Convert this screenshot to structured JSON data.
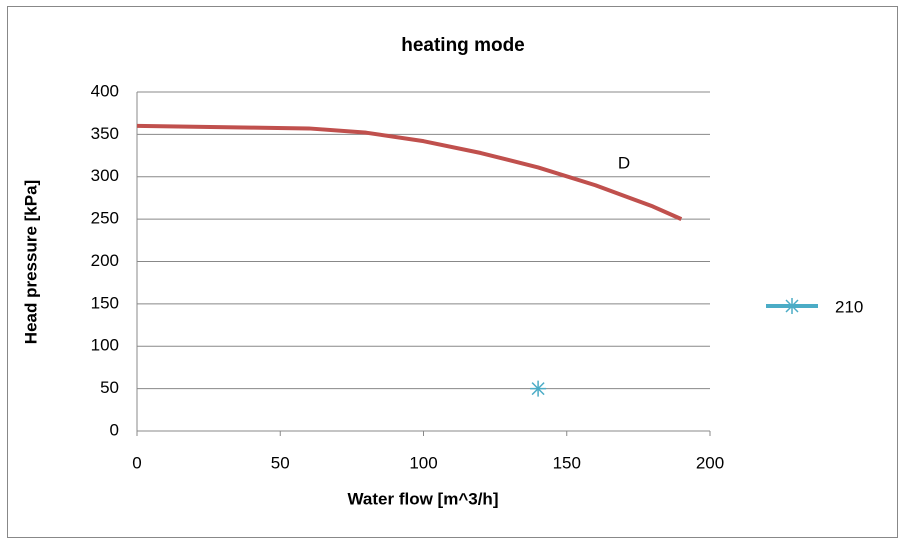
{
  "chart_data": {
    "type": "line",
    "title": "heating mode",
    "xlabel": "Water flow [m^3/h]",
    "ylabel": "Head pressure [kPa]",
    "xlim": [
      0,
      200
    ],
    "xticks": [
      0,
      50,
      100,
      150,
      200
    ],
    "ylim": [
      0,
      400
    ],
    "yticks": [
      0,
      50,
      100,
      150,
      200,
      250,
      300,
      350,
      400
    ],
    "grid": true,
    "legend": "right",
    "series": [
      {
        "color": "#c0504d",
        "marker": "none",
        "x": [
          0,
          20,
          40,
          60,
          80,
          100,
          120,
          140,
          160,
          180,
          190
        ],
        "values": [
          360,
          359,
          358,
          357,
          352,
          342,
          328,
          311,
          290,
          265,
          250
        ]
      },
      {
        "name": "210",
        "color": "#4bacc6",
        "marker": "asterisk",
        "x": [
          140
        ],
        "values": [
          50
        ]
      }
    ],
    "annotations": [
      {
        "text": "D",
        "x": 170,
        "y": 315
      }
    ]
  }
}
